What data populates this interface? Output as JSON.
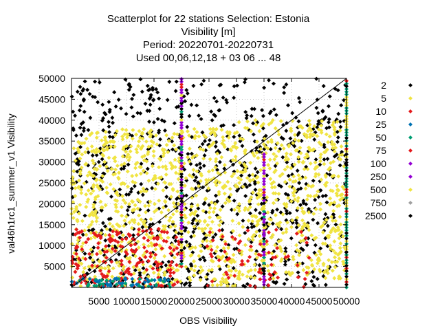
{
  "chart_data": {
    "type": "scatter",
    "title_lines": [
      "Scatterplot for   22 stations Selection: Estonia",
      "Visibility [m]",
      "Period: 20220701-20220731",
      "Used  00,06,12,18  + 03 06 ... 48"
    ],
    "xlabel": "OBS Visibility",
    "ylabel": "val46h1rc1_summer_v1 Visibility",
    "xlim": [
      0,
      50000
    ],
    "ylim": [
      0,
      50000
    ],
    "x_ticks": [
      5000,
      10000,
      15000,
      20000,
      25000,
      30000,
      35000,
      40000,
      45000,
      50000
    ],
    "y_ticks": [
      5000,
      10000,
      15000,
      20000,
      25000,
      30000,
      35000,
      40000,
      45000,
      50000
    ],
    "grid": true,
    "diagonal": true,
    "legend_position": "right",
    "legend": [
      {
        "label": "2",
        "color": "#000000"
      },
      {
        "label": "5",
        "color": "#f0e442"
      },
      {
        "label": "10",
        "color": "#e41a1c"
      },
      {
        "label": "25",
        "color": "#0072b2"
      },
      {
        "label": "50",
        "color": "#009e73"
      },
      {
        "label": "75",
        "color": "#e41a1c"
      },
      {
        "label": "100",
        "color": "#9400d3"
      },
      {
        "label": "250",
        "color": "#9400d3"
      },
      {
        "label": "500",
        "color": "#f0e442"
      },
      {
        "label": "750",
        "color": "#a0a0a0"
      },
      {
        "label": "2500",
        "color": "#000000"
      }
    ]
  }
}
